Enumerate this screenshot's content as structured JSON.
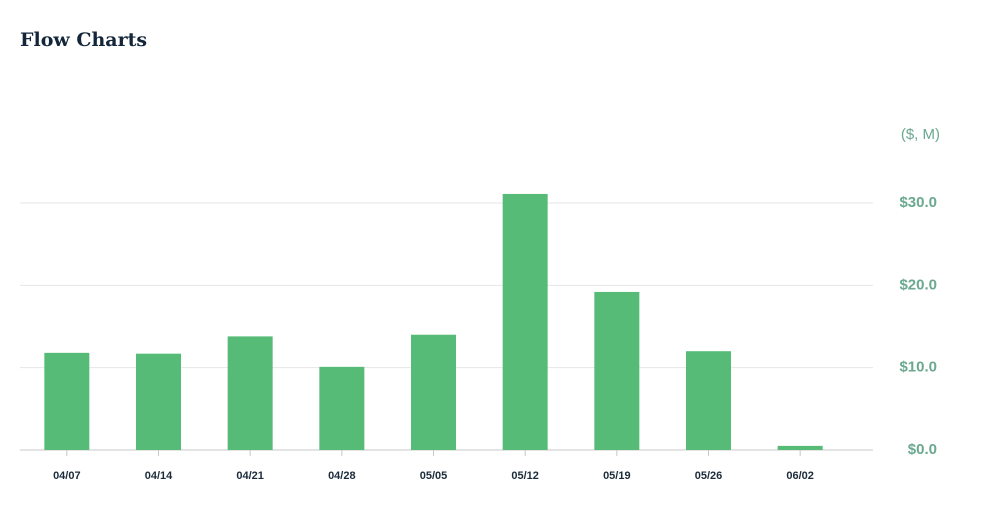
{
  "chart_data": {
    "type": "bar",
    "title": "Flow Charts",
    "ylabel": "($, M)",
    "categories": [
      "04/07",
      "04/14",
      "04/21",
      "04/28",
      "05/05",
      "05/12",
      "05/19",
      "05/26",
      "06/02"
    ],
    "values": [
      11.8,
      11.7,
      13.8,
      10.1,
      14.0,
      31.1,
      19.2,
      12.0,
      0.5
    ],
    "color": "#57bb78",
    "ylim": [
      0,
      30
    ],
    "yticks": [
      {
        "value": 0,
        "label": "$0.0"
      },
      {
        "value": 10,
        "label": "$10.0"
      },
      {
        "value": 20,
        "label": "$20.0"
      },
      {
        "value": 30,
        "label": "$30.0"
      }
    ],
    "grid": true
  }
}
